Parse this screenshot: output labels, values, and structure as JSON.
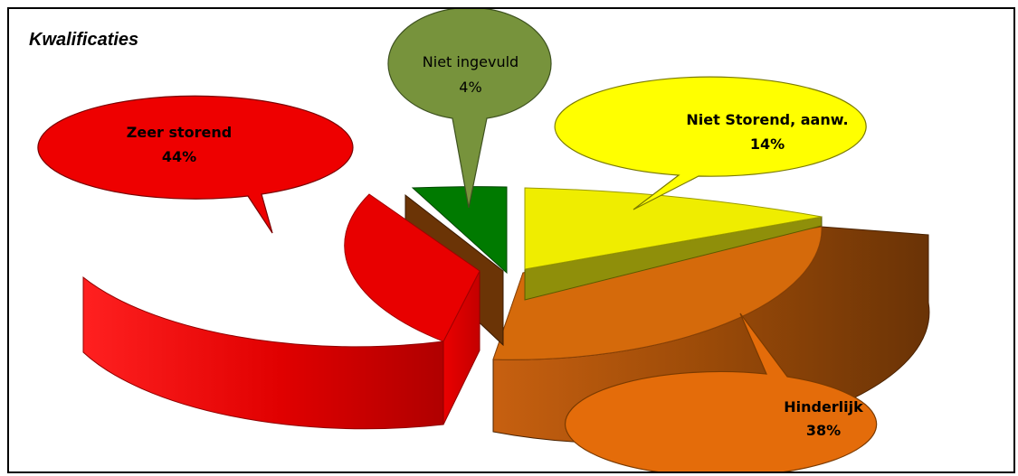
{
  "chart_data": {
    "type": "pie",
    "title": "Kwalificaties",
    "categories": [
      "Zeer storend",
      "Niet ingevuld",
      "Niet Storend, aanw.",
      "Hinderlijk"
    ],
    "values": [
      44,
      4,
      14,
      38
    ],
    "value_labels": [
      "44%",
      "4%",
      "14%",
      "38%"
    ],
    "unit": "%",
    "three_d": true,
    "exploded": true,
    "legend": "none",
    "colors": {
      "Zeer storend": "#e60000",
      "Niet ingevuld": "#007a00",
      "Niet Storend, aanw.": "#f0ee00",
      "Hinderlijk": "#d66a0b",
      "Niet ingevuld callout": "#76923c"
    }
  }
}
